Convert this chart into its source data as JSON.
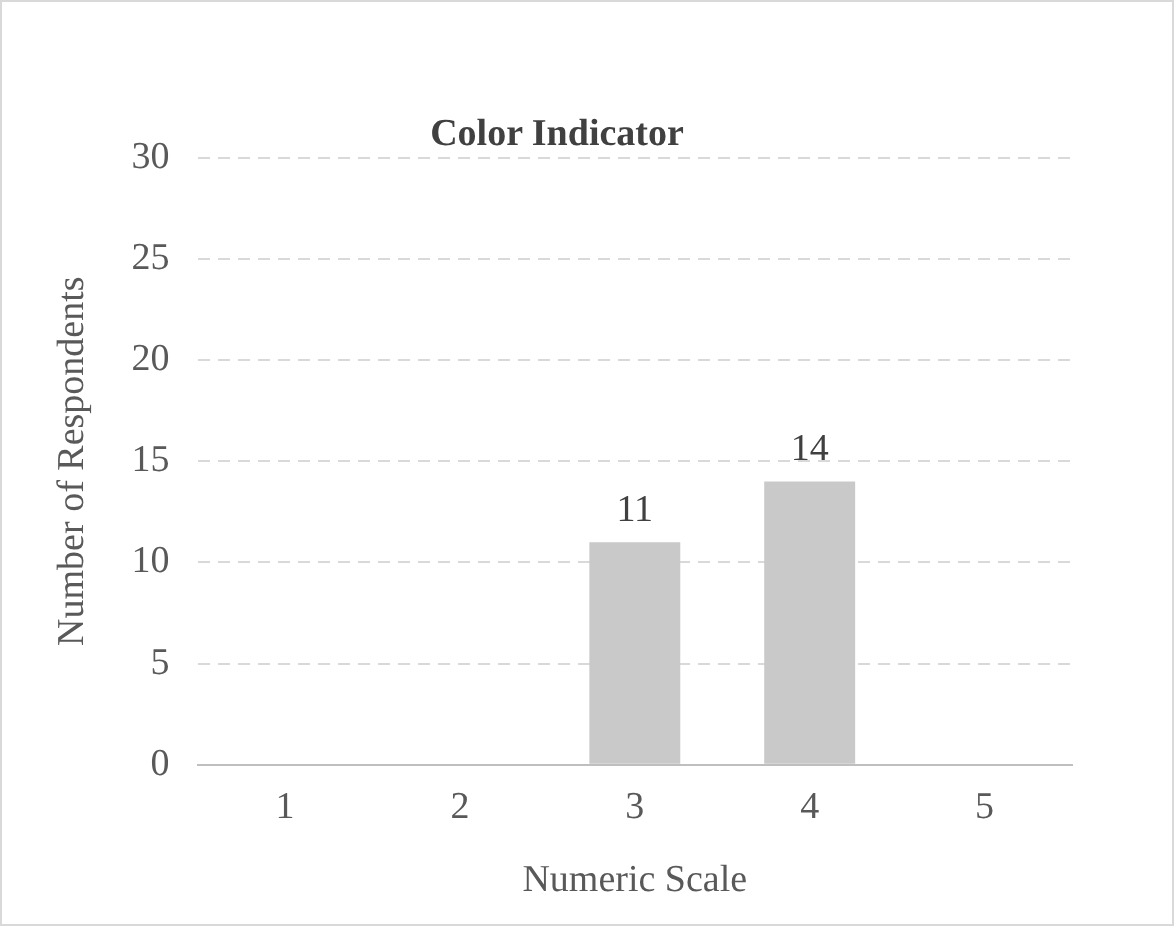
{
  "chart_data": {
    "type": "bar",
    "title": "Color Indicator",
    "xlabel": "Numeric Scale",
    "ylabel": "Number of Respondents",
    "categories": [
      "1",
      "2",
      "3",
      "4",
      "5"
    ],
    "values": [
      0,
      0,
      11,
      14,
      0
    ],
    "value_labels": [
      null,
      null,
      "11",
      "14",
      null
    ],
    "color": "#c9c9c9",
    "ylim": [
      0,
      30
    ],
    "yticks": [
      0,
      5,
      10,
      15,
      20,
      25,
      30
    ],
    "grid": "y",
    "legend": false
  }
}
